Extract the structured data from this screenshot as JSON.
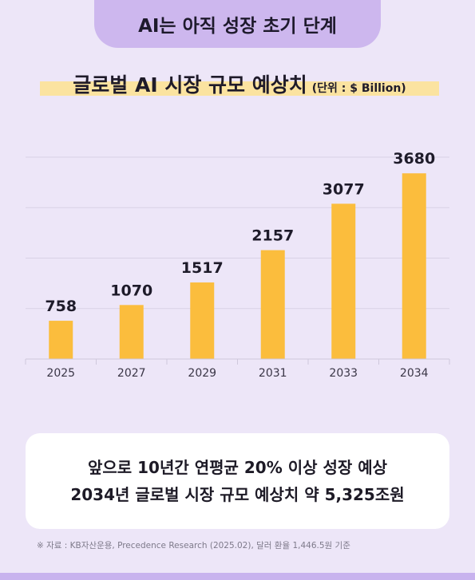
{
  "header": {
    "badge": "AI는 아직 성장 초기 단계"
  },
  "chart_data": {
    "type": "bar",
    "title": "글로벌 AI 시장 규모 예상치",
    "unit_label": "(단위 : $ Billion)",
    "categories": [
      "2025",
      "2027",
      "2029",
      "2031",
      "2033",
      "2034"
    ],
    "values": [
      758,
      1070,
      1517,
      2157,
      3077,
      3680
    ],
    "ylim": [
      0,
      4000
    ],
    "grid": true,
    "bar_color": "#fbbd3d"
  },
  "caption": {
    "line1": "앞으로 10년간 연평균 20% 이상 성장 예상",
    "line2": "2034년 글로벌 시장 규모 예상치 약 5,325조원"
  },
  "source": "※ 자료 : KB자산운용, Precedence Research (2025.02), 달러 환율 1,446.5원 기준"
}
